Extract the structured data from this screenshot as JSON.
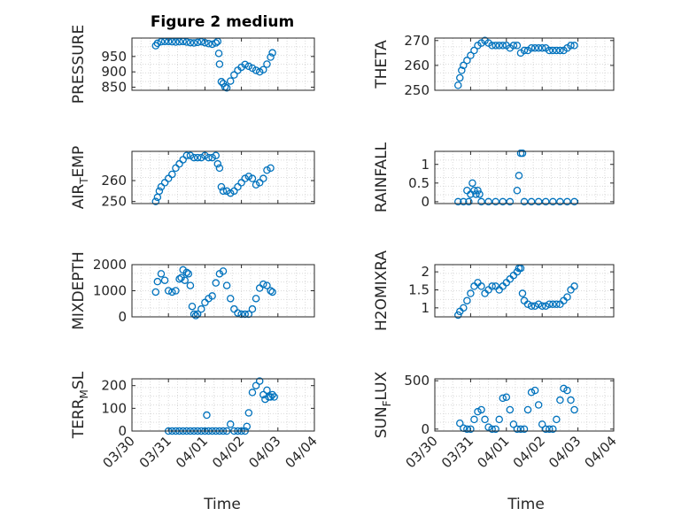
{
  "figure_title": "Figure 2 medium",
  "xaxis_label": "Time",
  "colors": {
    "marker": "#0072bd",
    "axis": "#262626",
    "grid": "#d9d9d9"
  },
  "chart_data": [
    {
      "id": "pressure",
      "type": "scatter",
      "ylabel": "PRESSURE",
      "ytick_labels": [
        "850",
        "900",
        "950"
      ],
      "yticks": [
        850,
        900,
        950
      ],
      "ylim": [
        840,
        1010
      ],
      "xlim": [
        0,
        5
      ],
      "show_xticks": false,
      "grid": true,
      "x": [
        0.65,
        0.7,
        0.8,
        0.9,
        1.0,
        1.1,
        1.2,
        1.3,
        1.4,
        1.5,
        1.6,
        1.7,
        1.8,
        1.9,
        2.0,
        2.1,
        2.2,
        2.3,
        2.35,
        2.38,
        2.4,
        2.45,
        2.5,
        2.55,
        2.6,
        2.7,
        2.8,
        2.9,
        3.0,
        3.1,
        3.2,
        3.3,
        3.4,
        3.5,
        3.6,
        3.7,
        3.8,
        3.85
      ],
      "y": [
        985,
        993,
        998,
        999,
        999,
        998,
        997,
        998,
        999,
        997,
        995,
        994,
        996,
        998,
        995,
        992,
        990,
        994,
        999,
        960,
        925,
        868,
        862,
        851,
        848,
        870,
        890,
        905,
        915,
        924,
        918,
        912,
        905,
        900,
        907,
        925,
        948,
        962
      ]
    },
    {
      "id": "theta",
      "type": "scatter",
      "ylabel": "THETA",
      "ytick_labels": [
        "250",
        "260",
        "270"
      ],
      "yticks": [
        250,
        260,
        270
      ],
      "ylim": [
        250,
        271
      ],
      "xlim": [
        0,
        5
      ],
      "show_xticks": false,
      "grid": true,
      "x": [
        0.65,
        0.7,
        0.75,
        0.8,
        0.9,
        1.0,
        1.1,
        1.2,
        1.3,
        1.4,
        1.5,
        1.6,
        1.7,
        1.8,
        1.9,
        2.0,
        2.1,
        2.2,
        2.3,
        2.4,
        2.5,
        2.6,
        2.7,
        2.8,
        2.9,
        3.0,
        3.1,
        3.2,
        3.3,
        3.4,
        3.5,
        3.6,
        3.7,
        3.8,
        3.9
      ],
      "y": [
        252,
        255,
        258,
        260,
        262,
        264,
        266,
        268,
        269,
        270,
        269,
        268,
        268,
        268,
        268,
        268,
        267,
        268,
        268,
        265,
        266,
        266,
        267,
        267,
        267,
        267,
        267,
        266,
        266,
        266,
        266,
        266,
        267,
        268,
        268
      ]
    },
    {
      "id": "air_temp",
      "type": "scatter",
      "ylabel": "AIR_TEMP",
      "ytick_labels": [
        "250",
        "260"
      ],
      "yticks": [
        250,
        260
      ],
      "ylim": [
        249,
        274
      ],
      "xlim": [
        0,
        5
      ],
      "show_xticks": false,
      "grid": true,
      "x": [
        0.65,
        0.7,
        0.75,
        0.8,
        0.9,
        1.0,
        1.1,
        1.2,
        1.3,
        1.4,
        1.5,
        1.6,
        1.7,
        1.8,
        1.9,
        2.0,
        2.1,
        2.2,
        2.3,
        2.35,
        2.4,
        2.45,
        2.5,
        2.6,
        2.7,
        2.8,
        2.9,
        3.0,
        3.1,
        3.2,
        3.3,
        3.4,
        3.5,
        3.6,
        3.7,
        3.8
      ],
      "y": [
        250,
        252,
        255,
        257,
        259,
        261,
        263,
        266,
        268,
        270,
        272,
        272,
        271,
        271,
        271,
        272,
        271,
        271,
        272,
        268,
        266,
        257,
        255,
        255,
        254,
        255,
        257,
        259,
        261,
        262,
        261,
        258,
        259,
        261,
        265,
        266
      ]
    },
    {
      "id": "rainfall",
      "type": "scatter",
      "ylabel": "RAINFALL",
      "ytick_labels": [
        "0",
        "0.5",
        "1"
      ],
      "yticks": [
        0,
        0.5,
        1
      ],
      "ylim": [
        -0.05,
        1.35
      ],
      "xlim": [
        0,
        5
      ],
      "show_xticks": false,
      "grid": true,
      "x": [
        0.65,
        0.8,
        0.9,
        0.95,
        1.0,
        1.05,
        1.1,
        1.15,
        1.2,
        1.25,
        1.3,
        1.5,
        1.7,
        1.9,
        2.1,
        2.3,
        2.35,
        2.4,
        2.45,
        2.5,
        2.7,
        2.9,
        3.1,
        3.3,
        3.5,
        3.7,
        3.9
      ],
      "y": [
        0,
        0,
        0.3,
        0,
        0.2,
        0.5,
        0.3,
        0.2,
        0.3,
        0.2,
        0,
        0,
        0,
        0,
        0,
        0.3,
        0.7,
        1.3,
        1.3,
        0,
        0,
        0,
        0,
        0,
        0,
        0,
        0
      ]
    },
    {
      "id": "mixdepth",
      "type": "scatter",
      "ylabel": "MIXDEPTH",
      "ytick_labels": [
        "0",
        "1000",
        "2000"
      ],
      "yticks": [
        0,
        1000,
        2000
      ],
      "ylim": [
        0,
        2000
      ],
      "xlim": [
        0,
        5
      ],
      "show_xticks": false,
      "grid": true,
      "x": [
        0.65,
        0.7,
        0.8,
        0.9,
        1.0,
        1.1,
        1.2,
        1.3,
        1.35,
        1.4,
        1.45,
        1.5,
        1.55,
        1.6,
        1.65,
        1.7,
        1.75,
        1.8,
        1.9,
        2.0,
        2.1,
        2.2,
        2.3,
        2.4,
        2.5,
        2.6,
        2.7,
        2.8,
        2.9,
        3.0,
        3.1,
        3.2,
        3.3,
        3.4,
        3.5,
        3.6,
        3.7,
        3.8,
        3.85
      ],
      "y": [
        950,
        1350,
        1650,
        1400,
        1000,
        950,
        1000,
        1450,
        1500,
        1800,
        1400,
        1700,
        1650,
        1200,
        400,
        100,
        50,
        100,
        300,
        550,
        700,
        800,
        1300,
        1650,
        1750,
        1200,
        700,
        300,
        150,
        100,
        100,
        100,
        300,
        700,
        1100,
        1250,
        1200,
        1000,
        950
      ]
    },
    {
      "id": "h2omixra",
      "type": "scatter",
      "ylabel": "H2OMIXRA",
      "ytick_labels": [
        "1",
        "1.5",
        "2"
      ],
      "yticks": [
        1,
        1.5,
        2
      ],
      "ylim": [
        0.75,
        2.2
      ],
      "xlim": [
        0,
        5
      ],
      "show_xticks": false,
      "grid": true,
      "x": [
        0.65,
        0.7,
        0.8,
        0.9,
        1.0,
        1.1,
        1.2,
        1.3,
        1.4,
        1.5,
        1.6,
        1.7,
        1.8,
        1.9,
        2.0,
        2.1,
        2.2,
        2.3,
        2.35,
        2.4,
        2.45,
        2.5,
        2.6,
        2.7,
        2.8,
        2.9,
        3.0,
        3.1,
        3.2,
        3.3,
        3.4,
        3.5,
        3.6,
        3.7,
        3.8,
        3.9
      ],
      "y": [
        0.8,
        0.9,
        1.0,
        1.2,
        1.4,
        1.6,
        1.7,
        1.6,
        1.4,
        1.5,
        1.6,
        1.6,
        1.5,
        1.6,
        1.7,
        1.8,
        1.9,
        2.0,
        2.1,
        2.1,
        1.4,
        1.2,
        1.1,
        1.05,
        1.05,
        1.1,
        1.05,
        1.05,
        1.1,
        1.1,
        1.1,
        1.1,
        1.2,
        1.3,
        1.5,
        1.6
      ]
    },
    {
      "id": "terr_msl",
      "type": "scatter",
      "ylabel": "TERR_MSL",
      "ytick_labels": [
        "0",
        "100",
        "200"
      ],
      "yticks": [
        0,
        100,
        200
      ],
      "ylim": [
        0,
        230
      ],
      "xlim": [
        0,
        5
      ],
      "show_xticks": true,
      "grid": true,
      "xtick_labels": [
        "03/30",
        "03/31",
        "04/01",
        "04/02",
        "04/03",
        "04/04"
      ],
      "xticks": [
        0,
        1,
        2,
        3,
        4,
        5
      ],
      "x": [
        1.0,
        1.1,
        1.2,
        1.3,
        1.4,
        1.5,
        1.6,
        1.7,
        1.8,
        1.9,
        2.0,
        2.05,
        2.1,
        2.2,
        2.3,
        2.4,
        2.5,
        2.6,
        2.7,
        2.8,
        2.9,
        3.0,
        3.1,
        3.15,
        3.2,
        3.3,
        3.4,
        3.5,
        3.6,
        3.65,
        3.7,
        3.75,
        3.8,
        3.85,
        3.9
      ],
      "y": [
        0,
        0,
        0,
        0,
        0,
        0,
        0,
        0,
        0,
        0,
        0,
        70,
        0,
        0,
        0,
        0,
        0,
        0,
        30,
        0,
        0,
        0,
        0,
        20,
        80,
        170,
        200,
        220,
        160,
        140,
        180,
        150,
        150,
        160,
        150
      ]
    },
    {
      "id": "sun_flux",
      "type": "scatter",
      "ylabel": "SUN_FLUX",
      "ytick_labels": [
        "0",
        "500"
      ],
      "yticks": [
        0,
        500
      ],
      "ylim": [
        -20,
        520
      ],
      "xlim": [
        0,
        5
      ],
      "show_xticks": true,
      "grid": true,
      "xtick_labels": [
        "03/30",
        "03/31",
        "04/01",
        "04/02",
        "04/03",
        "04/04"
      ],
      "xticks": [
        0,
        1,
        2,
        3,
        4,
        5
      ],
      "x": [
        0.7,
        0.8,
        0.9,
        1.0,
        1.1,
        1.2,
        1.3,
        1.4,
        1.5,
        1.6,
        1.7,
        1.8,
        1.9,
        2.0,
        2.1,
        2.2,
        2.3,
        2.4,
        2.5,
        2.6,
        2.7,
        2.8,
        2.9,
        3.0,
        3.1,
        3.2,
        3.3,
        3.4,
        3.5,
        3.6,
        3.7,
        3.8,
        3.9
      ],
      "y": [
        60,
        10,
        0,
        0,
        100,
        180,
        200,
        100,
        20,
        0,
        0,
        100,
        320,
        330,
        200,
        50,
        0,
        0,
        0,
        200,
        380,
        400,
        250,
        50,
        0,
        0,
        0,
        100,
        300,
        420,
        400,
        300,
        200
      ]
    }
  ]
}
